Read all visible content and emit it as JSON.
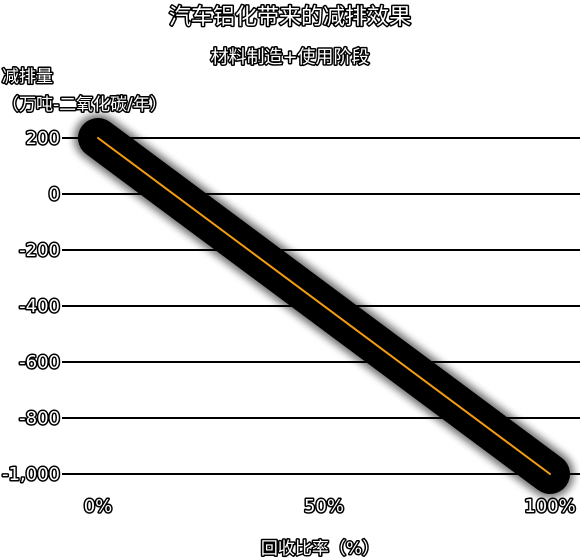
{
  "chart_data": {
    "type": "line",
    "title": "汽车铝化带来的减排效果",
    "subtitle": "材料制造+使用阶段",
    "ylabel_line1": "减排量",
    "ylabel_line2": "（万吨-二氧化碳/年）",
    "xlabel": "回收比率（%）",
    "x": [
      0,
      100
    ],
    "series": [
      {
        "values": [
          200,
          -1000
        ]
      }
    ],
    "xticks": [
      {
        "value": 0,
        "label": "0%"
      },
      {
        "value": 50,
        "label": "50%"
      },
      {
        "value": 100,
        "label": "100%"
      }
    ],
    "yticks": [
      {
        "value": 200,
        "label": "200"
      },
      {
        "value": 0,
        "label": "0"
      },
      {
        "value": -200,
        "label": "-200"
      },
      {
        "value": -400,
        "label": "-400"
      },
      {
        "value": -600,
        "label": "-600"
      },
      {
        "value": -800,
        "label": "-800"
      },
      {
        "value": -1000,
        "label": "-1,000"
      }
    ],
    "xlim": [
      0,
      100
    ],
    "ylim": [
      -1000,
      200
    ],
    "grid": true,
    "line_color": "#f39c12",
    "halo_color": "#000000"
  }
}
